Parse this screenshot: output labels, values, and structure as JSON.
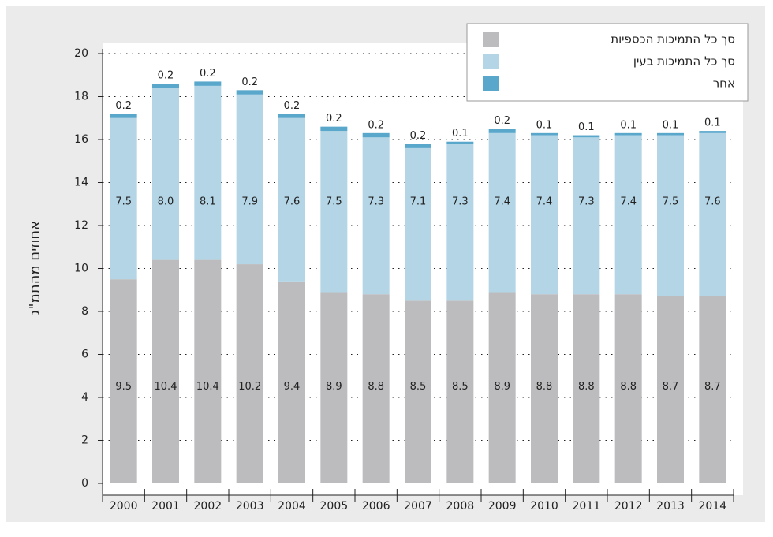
{
  "chart_data": {
    "type": "stacked-bar",
    "y_label": "אחוזים מהתמ\"ג",
    "categories": [
      "2000",
      "2001",
      "2002",
      "2003",
      "2004",
      "2005",
      "2006",
      "2007",
      "2008",
      "2009",
      "2010",
      "2011",
      "2012",
      "2013",
      "2014"
    ],
    "series": [
      {
        "name": "סך כל התמיכות הכספיות",
        "color": "#bcbcbe",
        "values": [
          9.5,
          10.4,
          10.4,
          10.2,
          9.4,
          8.9,
          8.8,
          8.5,
          8.5,
          8.9,
          8.8,
          8.8,
          8.8,
          8.7,
          8.7
        ],
        "value_labels": [
          "9.5",
          "10.4",
          "10.4",
          "10.2",
          "9.4",
          "8.9",
          "8.8",
          "8.5",
          "8.5",
          "8.9",
          "8.8",
          "8.8",
          "8.8",
          "8.7",
          "8.7"
        ]
      },
      {
        "name": "סך כל התמיכות בעין",
        "color": "#b4d5e5",
        "values": [
          7.5,
          8.0,
          8.1,
          7.9,
          7.6,
          7.5,
          7.3,
          7.1,
          7.3,
          7.4,
          7.4,
          7.3,
          7.4,
          7.5,
          7.6
        ],
        "value_labels": [
          "7.5",
          "8.0",
          "8.1",
          "7.9",
          "7.6",
          "7.5",
          "7.3",
          "7.1",
          "7.3",
          "7.4",
          "7.4",
          "7.3",
          "7.4",
          "7.5",
          "7.6"
        ]
      },
      {
        "name": "אחר",
        "color": "#5aa7cc",
        "values": [
          0.2,
          0.2,
          0.2,
          0.2,
          0.2,
          0.2,
          0.2,
          0.2,
          0.1,
          0.2,
          0.1,
          0.1,
          0.1,
          0.1,
          0.1
        ],
        "value_labels": [
          "0.2",
          "0.2",
          "0.2",
          "0.2",
          "0.2",
          "0.2",
          "0.2",
          "0.2",
          "0.1",
          "0.2",
          "0.1",
          "0.1",
          "0.1",
          "0.1",
          "0.1"
        ]
      }
    ],
    "ylim": [
      0,
      20
    ],
    "yticks": [
      0,
      2,
      4,
      6,
      8,
      10,
      12,
      14,
      16,
      18,
      20
    ],
    "grid": true,
    "legend": "top-right"
  }
}
